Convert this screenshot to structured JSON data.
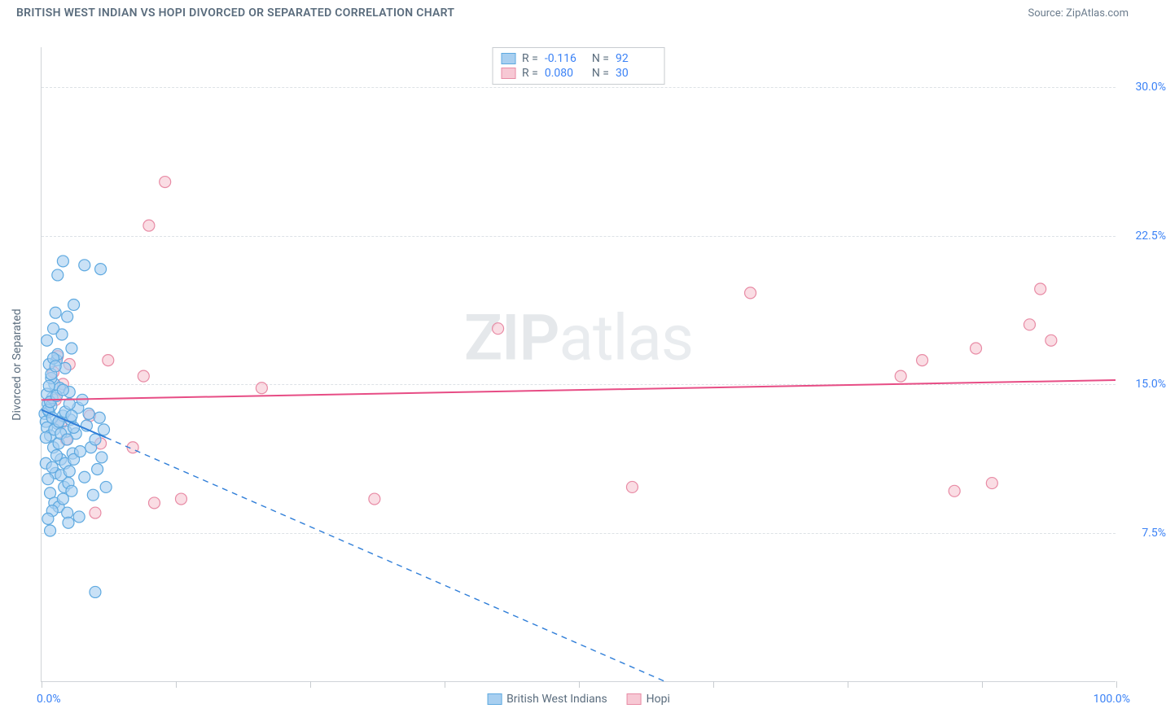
{
  "header": {
    "title": "BRITISH WEST INDIAN VS HOPI DIVORCED OR SEPARATED CORRELATION CHART",
    "source": "Source: ZipAtlas.com"
  },
  "watermark": {
    "zip": "ZIP",
    "atlas": "atlas"
  },
  "chart": {
    "type": "scatter",
    "background_color": "#ffffff",
    "grid_color": "#dde2e6",
    "axis_color": "#d0d4d8",
    "tick_color": "#c8ccd0",
    "xlim": [
      0,
      100
    ],
    "ylim": [
      0,
      32
    ],
    "yticks": [
      {
        "v": 7.5,
        "label": "7.5%"
      },
      {
        "v": 15.0,
        "label": "15.0%"
      },
      {
        "v": 22.5,
        "label": "22.5%"
      },
      {
        "v": 30.0,
        "label": "30.0%"
      }
    ],
    "xtick_positions": [
      0,
      12.5,
      25,
      37.5,
      50,
      62.5,
      75,
      87.5,
      100
    ],
    "xtick_labels": {
      "left": "0.0%",
      "right": "100.0%"
    },
    "yaxis_label": "Divorced or Separated",
    "label_fontsize": 14,
    "marker_radius": 7,
    "marker_stroke_width": 1.2,
    "trend_line_width": 2,
    "trend_dash_width": 1.4
  },
  "series": {
    "bwi": {
      "label": "British West Indians",
      "fill": "#a8cff0",
      "stroke": "#5ea9e0",
      "line_color": "#2f7ed8",
      "R": "-0.116",
      "N": "92",
      "trend": {
        "x1": 0,
        "y1": 13.7,
        "x2": 6,
        "y2": 12.3
      },
      "trend_ext": {
        "x1": 6,
        "y1": 12.3,
        "x2": 58,
        "y2": 0
      },
      "points": [
        [
          0.3,
          13.5
        ],
        [
          0.4,
          13.1
        ],
        [
          0.5,
          12.8
        ],
        [
          0.6,
          14.0
        ],
        [
          0.7,
          13.6
        ],
        [
          0.8,
          12.4
        ],
        [
          0.9,
          13.9
        ],
        [
          1.0,
          14.3
        ],
        [
          1.1,
          11.8
        ],
        [
          1.2,
          15.0
        ],
        [
          1.3,
          10.5
        ],
        [
          1.4,
          16.2
        ],
        [
          1.5,
          13.0
        ],
        [
          1.6,
          12.0
        ],
        [
          1.7,
          14.8
        ],
        [
          1.8,
          11.2
        ],
        [
          1.9,
          17.5
        ],
        [
          2.0,
          13.4
        ],
        [
          2.1,
          9.8
        ],
        [
          2.2,
          15.8
        ],
        [
          2.3,
          12.6
        ],
        [
          2.4,
          18.4
        ],
        [
          2.5,
          10.0
        ],
        [
          2.6,
          14.6
        ],
        [
          2.7,
          13.2
        ],
        [
          2.8,
          16.8
        ],
        [
          2.9,
          11.5
        ],
        [
          3.0,
          19.0
        ],
        [
          0.5,
          17.2
        ],
        [
          0.7,
          16.0
        ],
        [
          0.9,
          15.3
        ],
        [
          1.1,
          17.8
        ],
        [
          1.3,
          18.6
        ],
        [
          1.5,
          16.5
        ],
        [
          0.4,
          11.0
        ],
        [
          0.6,
          10.2
        ],
        [
          0.8,
          9.5
        ],
        [
          1.0,
          10.8
        ],
        [
          1.2,
          9.0
        ],
        [
          1.4,
          11.4
        ],
        [
          1.6,
          8.8
        ],
        [
          1.8,
          10.4
        ],
        [
          2.0,
          9.2
        ],
        [
          2.2,
          11.0
        ],
        [
          2.4,
          8.5
        ],
        [
          2.6,
          10.6
        ],
        [
          2.8,
          9.6
        ],
        [
          3.0,
          11.2
        ],
        [
          3.2,
          12.5
        ],
        [
          3.4,
          13.8
        ],
        [
          3.6,
          11.6
        ],
        [
          3.8,
          14.2
        ],
        [
          4.0,
          10.3
        ],
        [
          4.2,
          12.9
        ],
        [
          4.4,
          13.5
        ],
        [
          4.6,
          11.8
        ],
        [
          4.8,
          9.4
        ],
        [
          5.0,
          12.2
        ],
        [
          5.2,
          10.7
        ],
        [
          5.4,
          13.3
        ],
        [
          5.6,
          11.3
        ],
        [
          5.8,
          12.7
        ],
        [
          6.0,
          9.8
        ],
        [
          4.0,
          21.0
        ],
        [
          5.5,
          20.8
        ],
        [
          5.0,
          4.5
        ],
        [
          2.5,
          8.0
        ],
        [
          3.5,
          8.3
        ],
        [
          1.0,
          8.6
        ],
        [
          0.6,
          8.2
        ],
        [
          0.8,
          7.6
        ],
        [
          1.5,
          20.5
        ],
        [
          2.0,
          21.2
        ],
        [
          0.5,
          14.5
        ],
        [
          0.7,
          14.9
        ],
        [
          0.9,
          15.5
        ],
        [
          1.1,
          16.3
        ],
        [
          1.3,
          15.9
        ],
        [
          0.4,
          12.3
        ],
        [
          0.6,
          13.7
        ],
        [
          0.8,
          14.1
        ],
        [
          1.0,
          13.3
        ],
        [
          1.2,
          12.7
        ],
        [
          1.4,
          14.4
        ],
        [
          1.6,
          13.1
        ],
        [
          1.8,
          12.5
        ],
        [
          2.0,
          14.7
        ],
        [
          2.2,
          13.6
        ],
        [
          2.4,
          12.2
        ],
        [
          2.6,
          14.0
        ],
        [
          2.8,
          13.4
        ],
        [
          3.0,
          12.8
        ]
      ]
    },
    "hopi": {
      "label": "Hopi",
      "fill": "#f7c8d4",
      "stroke": "#e88ba5",
      "line_color": "#e74d85",
      "R": "0.080",
      "N": "30",
      "trend": {
        "x1": 0,
        "y1": 14.2,
        "x2": 100,
        "y2": 15.2
      },
      "points": [
        [
          1.1,
          15.6
        ],
        [
          1.3,
          14.2
        ],
        [
          1.5,
          16.4
        ],
        [
          1.8,
          13.0
        ],
        [
          2.0,
          15.0
        ],
        [
          2.3,
          12.2
        ],
        [
          2.6,
          16.0
        ],
        [
          4.5,
          13.4
        ],
        [
          5.0,
          8.5
        ],
        [
          5.5,
          12.0
        ],
        [
          6.2,
          16.2
        ],
        [
          8.5,
          11.8
        ],
        [
          9.5,
          15.4
        ],
        [
          10.5,
          9.0
        ],
        [
          11.5,
          25.2
        ],
        [
          10.0,
          23.0
        ],
        [
          13.0,
          9.2
        ],
        [
          20.5,
          14.8
        ],
        [
          31.0,
          9.2
        ],
        [
          42.5,
          17.8
        ],
        [
          55.0,
          9.8
        ],
        [
          66.0,
          19.6
        ],
        [
          80.0,
          15.4
        ],
        [
          82.0,
          16.2
        ],
        [
          85.0,
          9.6
        ],
        [
          87.0,
          16.8
        ],
        [
          88.5,
          10.0
        ],
        [
          92.0,
          18.0
        ],
        [
          93.0,
          19.8
        ],
        [
          94.0,
          17.2
        ]
      ]
    }
  },
  "legend_top": {
    "R_label": "R =",
    "N_label": "N ="
  }
}
